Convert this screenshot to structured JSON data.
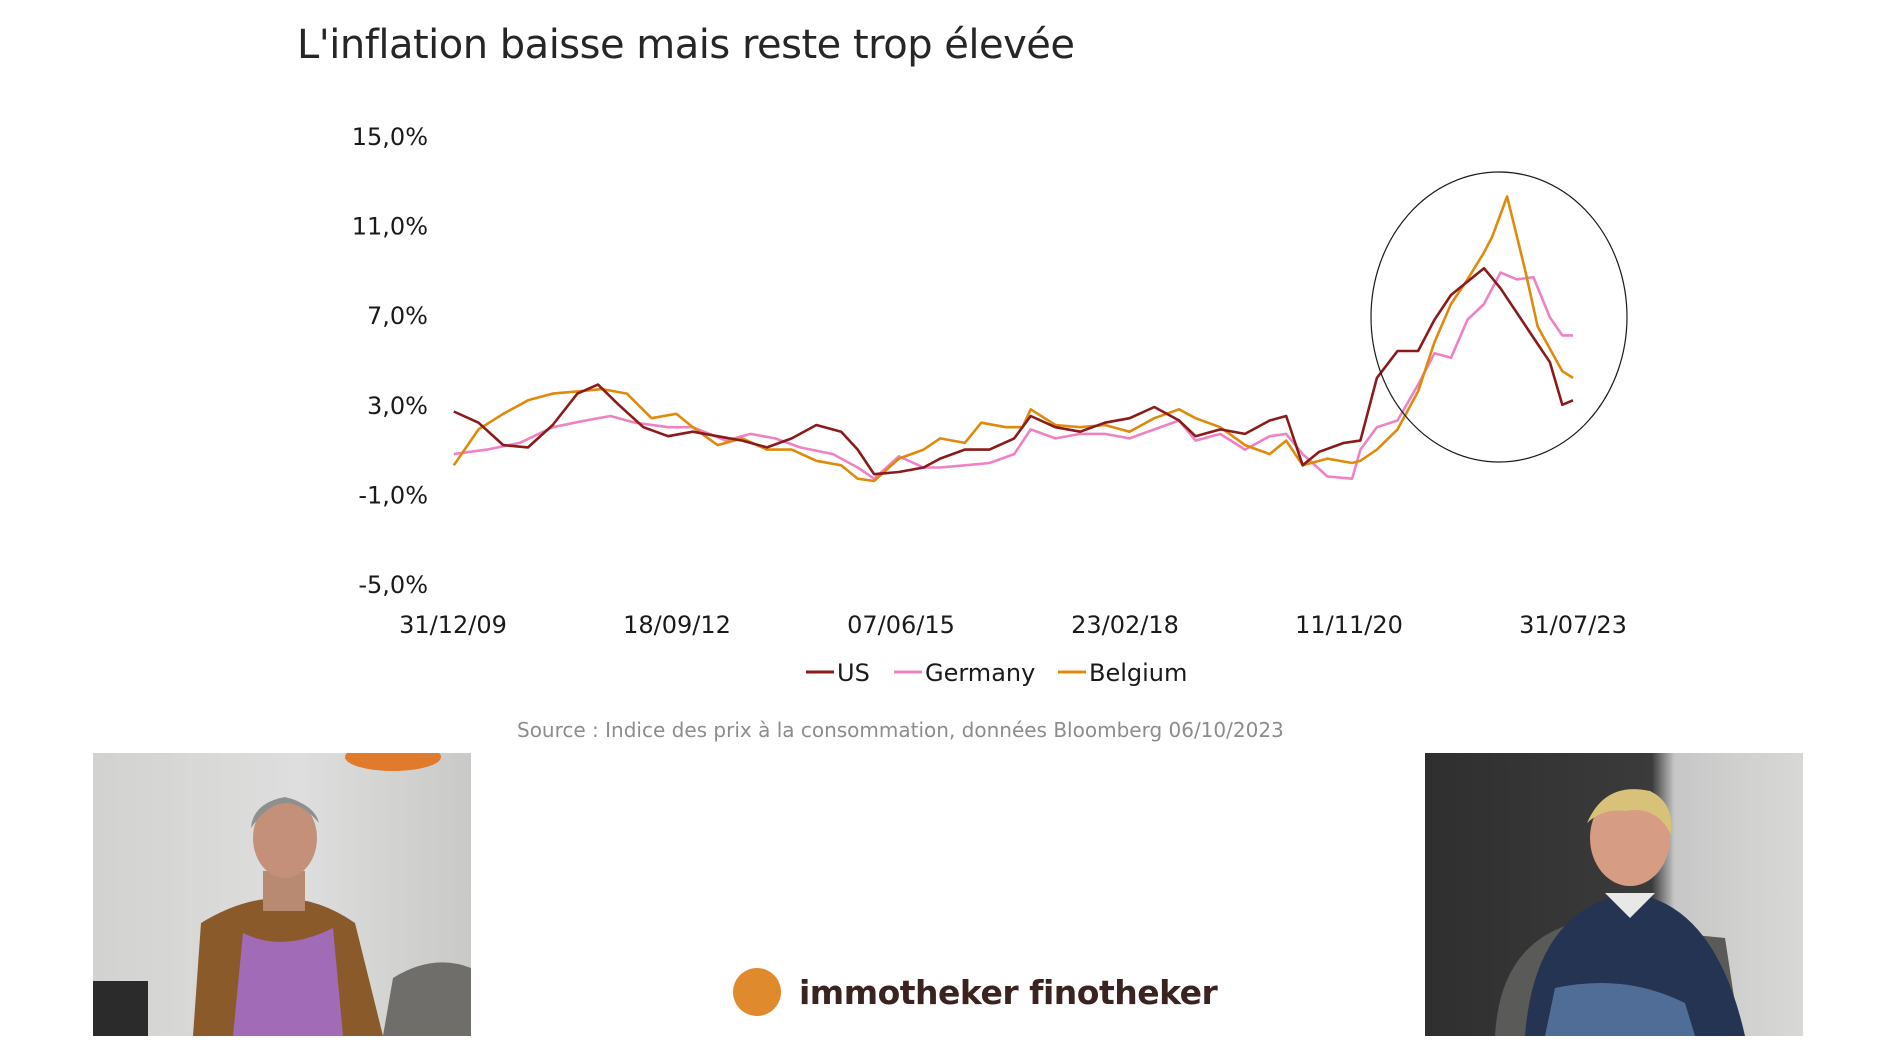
{
  "chart_data": {
    "type": "line",
    "title": "L'inflation baisse mais reste trop élevée",
    "yticks": [
      "15,0%",
      "11,0%",
      "7,0%",
      "3,0%",
      "-1,0%",
      "-5,0%"
    ],
    "ylim": [
      -5,
      15
    ],
    "xticks": [
      "31/12/09",
      "18/09/12",
      "07/06/15",
      "23/02/18",
      "11/11/20",
      "31/07/23"
    ],
    "x_range_years": [
      2009.99,
      2023.58
    ],
    "grid": false,
    "legend_position": "bottom",
    "series": [
      {
        "name": "US",
        "color": "#8b1a1a",
        "points": [
          [
            2010.0,
            2.7
          ],
          [
            2010.3,
            2.2
          ],
          [
            2010.6,
            1.2
          ],
          [
            2010.9,
            1.1
          ],
          [
            2011.2,
            2.1
          ],
          [
            2011.5,
            3.5
          ],
          [
            2011.75,
            3.9
          ],
          [
            2012.0,
            3.0
          ],
          [
            2012.3,
            2.0
          ],
          [
            2012.6,
            1.6
          ],
          [
            2012.9,
            1.8
          ],
          [
            2013.2,
            1.6
          ],
          [
            2013.5,
            1.4
          ],
          [
            2013.8,
            1.1
          ],
          [
            2014.1,
            1.5
          ],
          [
            2014.4,
            2.1
          ],
          [
            2014.7,
            1.8
          ],
          [
            2014.9,
            1.0
          ],
          [
            2015.1,
            -0.1
          ],
          [
            2015.4,
            0.0
          ],
          [
            2015.7,
            0.2
          ],
          [
            2015.9,
            0.6
          ],
          [
            2016.2,
            1.0
          ],
          [
            2016.5,
            1.0
          ],
          [
            2016.8,
            1.5
          ],
          [
            2017.0,
            2.5
          ],
          [
            2017.3,
            2.0
          ],
          [
            2017.6,
            1.8
          ],
          [
            2017.9,
            2.2
          ],
          [
            2018.2,
            2.4
          ],
          [
            2018.5,
            2.9
          ],
          [
            2018.8,
            2.3
          ],
          [
            2019.0,
            1.6
          ],
          [
            2019.3,
            1.9
          ],
          [
            2019.6,
            1.7
          ],
          [
            2019.9,
            2.3
          ],
          [
            2020.1,
            2.5
          ],
          [
            2020.3,
            0.3
          ],
          [
            2020.5,
            0.9
          ],
          [
            2020.8,
            1.3
          ],
          [
            2021.0,
            1.4
          ],
          [
            2021.2,
            4.2
          ],
          [
            2021.45,
            5.4
          ],
          [
            2021.7,
            5.4
          ],
          [
            2021.9,
            6.8
          ],
          [
            2022.1,
            7.9
          ],
          [
            2022.3,
            8.5
          ],
          [
            2022.5,
            9.1
          ],
          [
            2022.7,
            8.2
          ],
          [
            2022.9,
            7.1
          ],
          [
            2023.1,
            6.0
          ],
          [
            2023.3,
            4.9
          ],
          [
            2023.45,
            3.0
          ],
          [
            2023.58,
            3.2
          ]
        ]
      },
      {
        "name": "Germany",
        "color": "#ee82c3",
        "points": [
          [
            2010.0,
            0.8
          ],
          [
            2010.4,
            1.0
          ],
          [
            2010.8,
            1.3
          ],
          [
            2011.2,
            2.0
          ],
          [
            2011.6,
            2.3
          ],
          [
            2011.9,
            2.5
          ],
          [
            2012.2,
            2.2
          ],
          [
            2012.6,
            2.0
          ],
          [
            2012.9,
            2.0
          ],
          [
            2013.3,
            1.4
          ],
          [
            2013.6,
            1.7
          ],
          [
            2013.9,
            1.5
          ],
          [
            2014.2,
            1.1
          ],
          [
            2014.6,
            0.8
          ],
          [
            2014.9,
            0.2
          ],
          [
            2015.1,
            -0.3
          ],
          [
            2015.4,
            0.7
          ],
          [
            2015.7,
            0.2
          ],
          [
            2015.9,
            0.2
          ],
          [
            2016.2,
            0.3
          ],
          [
            2016.5,
            0.4
          ],
          [
            2016.8,
            0.8
          ],
          [
            2017.0,
            1.9
          ],
          [
            2017.3,
            1.5
          ],
          [
            2017.6,
            1.7
          ],
          [
            2017.9,
            1.7
          ],
          [
            2018.2,
            1.5
          ],
          [
            2018.5,
            1.9
          ],
          [
            2018.8,
            2.3
          ],
          [
            2019.0,
            1.4
          ],
          [
            2019.3,
            1.7
          ],
          [
            2019.6,
            1.0
          ],
          [
            2019.9,
            1.6
          ],
          [
            2020.1,
            1.7
          ],
          [
            2020.3,
            0.8
          ],
          [
            2020.6,
            -0.2
          ],
          [
            2020.9,
            -0.3
          ],
          [
            2021.0,
            1.0
          ],
          [
            2021.2,
            2.0
          ],
          [
            2021.45,
            2.3
          ],
          [
            2021.7,
            3.9
          ],
          [
            2021.9,
            5.3
          ],
          [
            2022.1,
            5.1
          ],
          [
            2022.3,
            6.8
          ],
          [
            2022.5,
            7.5
          ],
          [
            2022.7,
            8.9
          ],
          [
            2022.9,
            8.6
          ],
          [
            2023.1,
            8.7
          ],
          [
            2023.3,
            6.9
          ],
          [
            2023.45,
            6.1
          ],
          [
            2023.58,
            6.1
          ]
        ]
      },
      {
        "name": "Belgium",
        "color": "#e08a0c",
        "points": [
          [
            2010.0,
            0.3
          ],
          [
            2010.3,
            1.9
          ],
          [
            2010.6,
            2.6
          ],
          [
            2010.9,
            3.2
          ],
          [
            2011.2,
            3.5
          ],
          [
            2011.5,
            3.6
          ],
          [
            2011.8,
            3.7
          ],
          [
            2012.1,
            3.5
          ],
          [
            2012.4,
            2.4
          ],
          [
            2012.7,
            2.6
          ],
          [
            2012.9,
            2.0
          ],
          [
            2013.2,
            1.2
          ],
          [
            2013.5,
            1.5
          ],
          [
            2013.8,
            1.0
          ],
          [
            2014.1,
            1.0
          ],
          [
            2014.4,
            0.5
          ],
          [
            2014.7,
            0.3
          ],
          [
            2014.9,
            -0.3
          ],
          [
            2015.1,
            -0.4
          ],
          [
            2015.4,
            0.6
          ],
          [
            2015.7,
            1.0
          ],
          [
            2015.9,
            1.5
          ],
          [
            2016.2,
            1.3
          ],
          [
            2016.4,
            2.2
          ],
          [
            2016.7,
            2.0
          ],
          [
            2016.9,
            2.0
          ],
          [
            2017.0,
            2.8
          ],
          [
            2017.3,
            2.1
          ],
          [
            2017.6,
            2.0
          ],
          [
            2017.9,
            2.1
          ],
          [
            2018.2,
            1.8
          ],
          [
            2018.5,
            2.4
          ],
          [
            2018.8,
            2.8
          ],
          [
            2019.0,
            2.4
          ],
          [
            2019.3,
            2.0
          ],
          [
            2019.6,
            1.2
          ],
          [
            2019.9,
            0.8
          ],
          [
            2020.1,
            1.4
          ],
          [
            2020.3,
            0.3
          ],
          [
            2020.6,
            0.6
          ],
          [
            2020.9,
            0.4
          ],
          [
            2021.0,
            0.5
          ],
          [
            2021.2,
            1.0
          ],
          [
            2021.45,
            1.9
          ],
          [
            2021.7,
            3.6
          ],
          [
            2021.9,
            5.8
          ],
          [
            2022.1,
            7.5
          ],
          [
            2022.3,
            8.6
          ],
          [
            2022.5,
            9.8
          ],
          [
            2022.6,
            10.5
          ],
          [
            2022.78,
            12.3
          ],
          [
            2022.9,
            10.5
          ],
          [
            2023.0,
            9.0
          ],
          [
            2023.15,
            6.5
          ],
          [
            2023.3,
            5.5
          ],
          [
            2023.45,
            4.5
          ],
          [
            2023.58,
            4.2
          ]
        ]
      }
    ]
  },
  "source_note": "Source : Indice des prix à la consommation, données Bloomberg 06/10/2023",
  "brand": {
    "name": "immotheker finotheker",
    "color": "#e08a2e"
  }
}
